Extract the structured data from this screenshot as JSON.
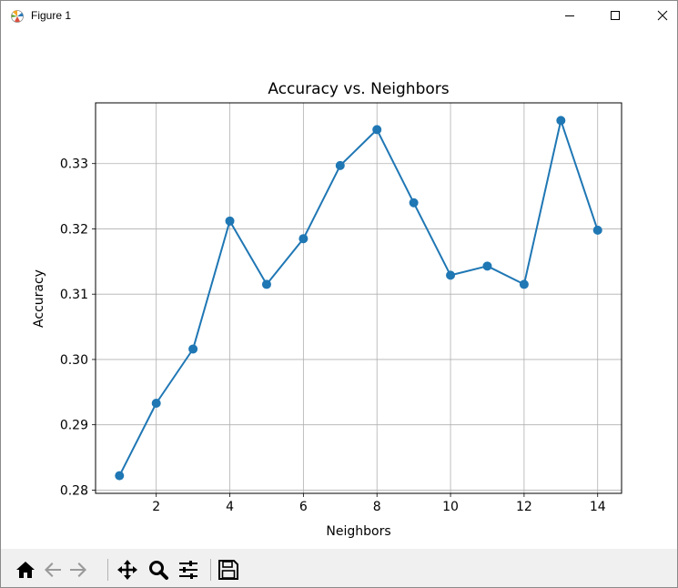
{
  "window": {
    "title": "Figure 1",
    "controls": [
      "minimize",
      "maximize",
      "close"
    ]
  },
  "toolbar": {
    "tools": [
      {
        "name": "home-icon"
      },
      {
        "name": "back-arrow-icon"
      },
      {
        "name": "forward-arrow-icon"
      },
      {
        "name": "pan-move-icon"
      },
      {
        "name": "zoom-magnifier-icon"
      },
      {
        "name": "subplots-sliders-icon"
      },
      {
        "name": "save-disk-icon"
      }
    ]
  },
  "chart_data": {
    "type": "line",
    "title": "Accuracy vs. Neighbors",
    "xlabel": "Neighbors",
    "ylabel": "Accuracy",
    "x": [
      1,
      2,
      3,
      4,
      5,
      6,
      7,
      8,
      9,
      10,
      11,
      12,
      13,
      14
    ],
    "series": [
      {
        "values": [
          0.2822,
          0.2933,
          0.3016,
          0.3212,
          0.3115,
          0.3185,
          0.3297,
          0.3352,
          0.324,
          0.3129,
          0.3143,
          0.3115,
          0.3366,
          0.3198
        ],
        "color": "#1f77b4",
        "marker": "circle"
      }
    ],
    "xticks": [
      2,
      4,
      6,
      8,
      10,
      12,
      14
    ],
    "yticks": [
      0.28,
      0.29,
      0.3,
      0.31,
      0.32,
      0.33
    ],
    "ytick_labels": [
      "0.28",
      "0.29",
      "0.30",
      "0.31",
      "0.32",
      "0.33"
    ],
    "xlim": [
      0.35,
      14.65
    ],
    "ylim": [
      0.2795,
      0.3393
    ],
    "grid": true
  }
}
